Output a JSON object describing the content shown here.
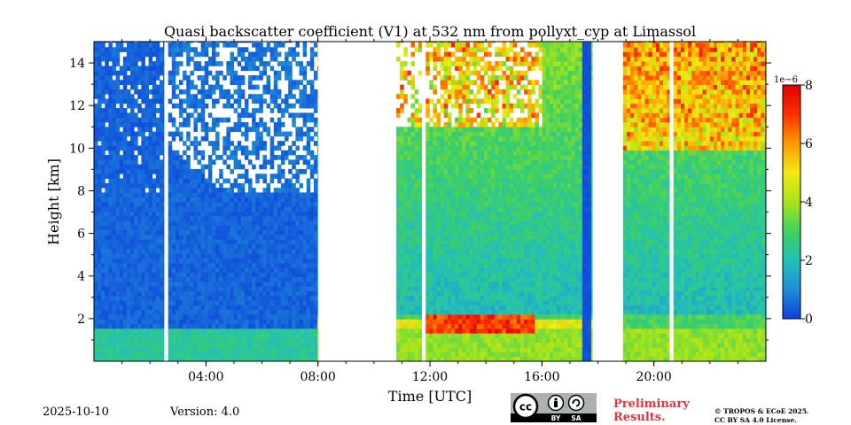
{
  "footer": {
    "date": "2025-10-10",
    "version": "Version: 4.0",
    "preliminary_line1": "Preliminary",
    "preliminary_line2": "Results.",
    "copyright_line1": "© TROPOS & ECoE 2025.",
    "copyright_line2": "CC BY SA 4.0 License.",
    "license_badge": {
      "cc": "cc",
      "by": "BY",
      "sa": "SA"
    }
  },
  "chart_data": {
    "type": "heatmap",
    "title": "Quasi backscatter coefficient (V1) at 532 nm from pollyxt_cyp at Limassol",
    "xlabel": "Time [UTC]",
    "ylabel": "Height [km]",
    "xlim_hours": [
      0,
      24
    ],
    "ylim_km": [
      0,
      15
    ],
    "x_ticks": [
      {
        "hour": 4,
        "label": "04:00"
      },
      {
        "hour": 8,
        "label": "08:00"
      },
      {
        "hour": 12,
        "label": "12:00"
      },
      {
        "hour": 16,
        "label": "16:00"
      },
      {
        "hour": 20,
        "label": "20:00"
      }
    ],
    "y_ticks": [
      2,
      4,
      6,
      8,
      10,
      12,
      14
    ],
    "colorbar": {
      "label_exponent": "1e−6",
      "vmin": 0,
      "vmax": 8,
      "ticks": [
        0,
        2,
        4,
        6,
        8
      ],
      "colormap": [
        "#0d3fdc",
        "#1f8fd8",
        "#22c0b8",
        "#40d060",
        "#a8e418",
        "#f2ea10",
        "#ff9a00",
        "#ff3000",
        "#e00000"
      ]
    },
    "measurement_periods_utc_hours": [
      {
        "start": 0.0,
        "end": 2.5
      },
      {
        "start": 2.65,
        "end": 8.0
      },
      {
        "start": 10.8,
        "end": 11.7
      },
      {
        "start": 11.85,
        "end": 17.5
      },
      {
        "start": 17.5,
        "end": 17.8
      },
      {
        "start": 18.9,
        "end": 20.55
      },
      {
        "start": 20.7,
        "end": 24.0
      }
    ],
    "features": {
      "boundary_layer_top_km": 1.6,
      "aerosol_layer_km": [
        1.0,
        2.0
      ],
      "enhanced_backscatter_period_utc_hours": [
        11.85,
        15.8
      ]
    }
  }
}
